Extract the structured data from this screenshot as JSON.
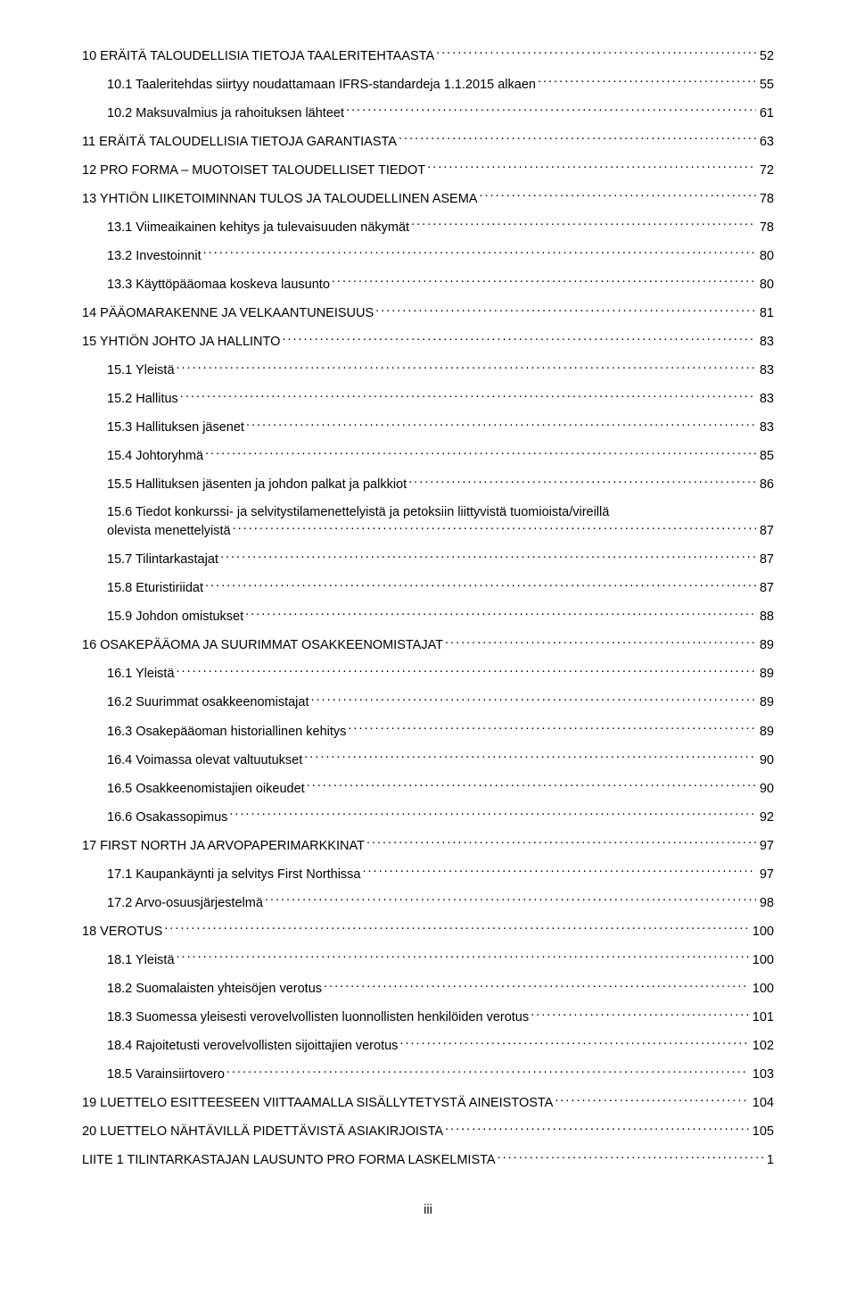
{
  "toc": [
    {
      "label": "10 ERÄITÄ TALOUDELLISIA TIETOJA TAALERITEHTAASTA",
      "page": "52",
      "indent": 0
    },
    {
      "label": "10.1 Taaleritehdas siirtyy noudattamaan IFRS-standardeja 1.1.2015 alkaen",
      "page": "55",
      "indent": 1
    },
    {
      "label": "10.2 Maksuvalmius ja rahoituksen lähteet",
      "page": "61",
      "indent": 1
    },
    {
      "label": "11 ERÄITÄ TALOUDELLISIA TIETOJA GARANTIASTA",
      "page": "63",
      "indent": 0
    },
    {
      "label": "12 PRO FORMA – MUOTOISET TALOUDELLISET TIEDOT",
      "page": "72",
      "indent": 0
    },
    {
      "label": "13 YHTIÖN LIIKETOIMINNAN TULOS JA TALOUDELLINEN ASEMA",
      "page": "78",
      "indent": 0
    },
    {
      "label": "13.1 Viimeaikainen kehitys ja tulevaisuuden näkymät",
      "page": "78",
      "indent": 1
    },
    {
      "label": "13.2 Investoinnit",
      "page": "80",
      "indent": 1
    },
    {
      "label": "13.3 Käyttöpääomaa koskeva lausunto",
      "page": "80",
      "indent": 1
    },
    {
      "label": "14 PÄÄOMARAKENNE JA VELKAANTUNEISUUS",
      "page": "81",
      "indent": 0
    },
    {
      "label": "15 YHTIÖN JOHTO JA HALLINTO",
      "page": "83",
      "indent": 0
    },
    {
      "label": "15.1 Yleistä",
      "page": "83",
      "indent": 1
    },
    {
      "label": "15.2 Hallitus",
      "page": "83",
      "indent": 1
    },
    {
      "label": "15.3 Hallituksen jäsenet",
      "page": "83",
      "indent": 1
    },
    {
      "label": "15.4 Johtoryhmä",
      "page": "85",
      "indent": 1
    },
    {
      "label": "15.5 Hallituksen jäsenten ja johdon palkat ja palkkiot",
      "page": "86",
      "indent": 1
    },
    {
      "label": "15.6 Tiedot konkurssi- ja selvitystilamenettelyistä ja petoksiin liittyvistä tuomioista/vireillä olevista menettelyistä",
      "page": "87",
      "indent": 1,
      "wrap": true
    },
    {
      "label": "15.7 Tilintarkastajat",
      "page": "87",
      "indent": 1
    },
    {
      "label": "15.8 Eturistiriidat",
      "page": "87",
      "indent": 1
    },
    {
      "label": "15.9 Johdon omistukset",
      "page": "88",
      "indent": 1
    },
    {
      "label": "16 OSAKEPÄÄOMA JA SUURIMMAT OSAKKEENOMISTAJAT",
      "page": "89",
      "indent": 0
    },
    {
      "label": "16.1 Yleistä",
      "page": "89",
      "indent": 1
    },
    {
      "label": "16.2 Suurimmat osakkeenomistajat",
      "page": "89",
      "indent": 1
    },
    {
      "label": "16.3 Osakepääoman historiallinen kehitys",
      "page": "89",
      "indent": 1
    },
    {
      "label": "16.4 Voimassa olevat valtuutukset",
      "page": "90",
      "indent": 1
    },
    {
      "label": "16.5 Osakkeenomistajien oikeudet",
      "page": "90",
      "indent": 1
    },
    {
      "label": "16.6 Osakassopimus",
      "page": "92",
      "indent": 1
    },
    {
      "label": "17 FIRST NORTH JA ARVOPAPERIMARKKINAT",
      "page": "97",
      "indent": 0
    },
    {
      "label": "17.1 Kaupankäynti ja selvitys First Northissa",
      "page": "97",
      "indent": 1
    },
    {
      "label": "17.2 Arvo-osuusjärjestelmä",
      "page": "98",
      "indent": 1
    },
    {
      "label": "18 VEROTUS",
      "page": "100",
      "indent": 0
    },
    {
      "label": "18.1 Yleistä",
      "page": "100",
      "indent": 1
    },
    {
      "label": "18.2 Suomalaisten yhteisöjen verotus",
      "page": "100",
      "indent": 1
    },
    {
      "label": "18.3 Suomessa yleisesti verovelvollisten luonnollisten henkilöiden verotus",
      "page": "101",
      "indent": 1
    },
    {
      "label": "18.4 Rajoitetusti verovelvollisten sijoittajien verotus",
      "page": "102",
      "indent": 1
    },
    {
      "label": "18.5 Varainsiirtovero",
      "page": "103",
      "indent": 1
    },
    {
      "label": "19 LUETTELO ESITTEESEEN VIITTAAMALLA SISÄLLYTETYSTÄ AINEISTOSTA",
      "page": "104",
      "indent": 0
    },
    {
      "label": "20 LUETTELO NÄHTÄVILLÄ PIDETTÄVISTÄ ASIAKIRJOISTA",
      "page": "105",
      "indent": 0
    },
    {
      "label": "LIITE 1 TILINTARKASTAJAN LAUSUNTO PRO FORMA LASKELMISTA",
      "page": "1",
      "indent": 0
    }
  ],
  "page_number": "iii"
}
